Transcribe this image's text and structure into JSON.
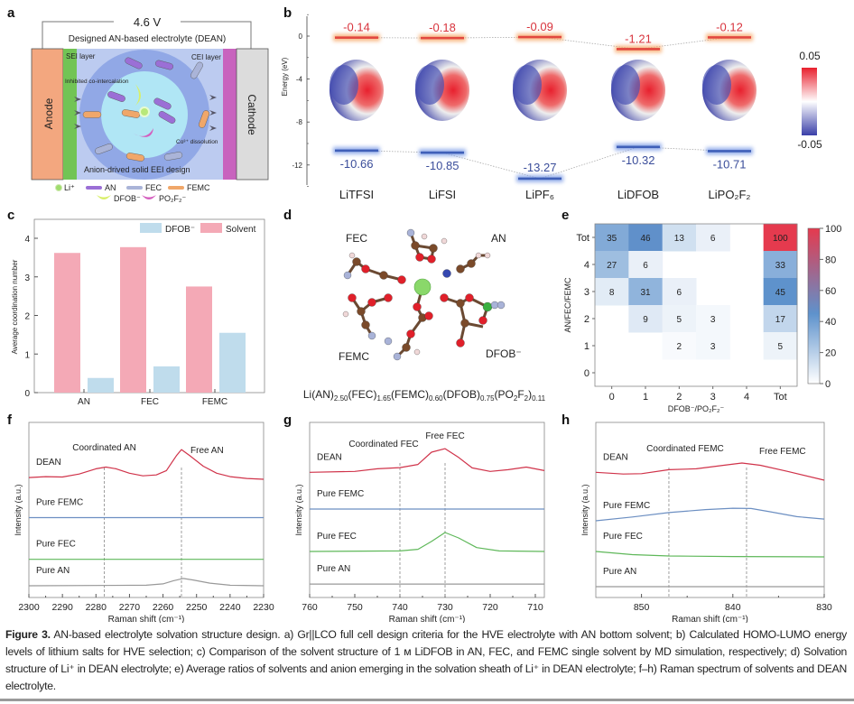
{
  "panel_labels": {
    "a": "a",
    "b": "b",
    "c": "c",
    "d": "d",
    "e": "e",
    "f": "f",
    "g": "g",
    "h": "h"
  },
  "panel_a": {
    "voltage": "4.6 V",
    "electrolyte_title": "Designed AN-based electrolyte (DEAN)",
    "anode": "Anode",
    "cathode": "Cathode",
    "sei": "SEI layer",
    "cei": "CEI layer",
    "inhibited": "Inhibited co-intercalation",
    "dissolution": "Co³⁺ dissolution",
    "eei": "Anion-drived solid EEI design",
    "legend": [
      {
        "label": "Li⁺",
        "color": "#9fdc6e",
        "shape": "circle"
      },
      {
        "label": "AN",
        "color": "#9b6fd6",
        "shape": "capsule"
      },
      {
        "label": "FEC",
        "color": "#aab4d8",
        "shape": "capsule"
      },
      {
        "label": "FEMC",
        "color": "#f0a76a",
        "shape": "capsule"
      },
      {
        "label": "DFOB⁻",
        "color": "#d9ef6a",
        "shape": "crescent"
      },
      {
        "label": "PO₂F₂⁻",
        "color": "#d45fbf",
        "shape": "crescent"
      }
    ],
    "colors": {
      "anode": "#f3a77f",
      "sei": "#72c455",
      "cei": "#c863be",
      "cathode": "#dcdcdc",
      "electrolyte": "#bccbf0",
      "shell": "#8aa2e4",
      "core": "#b0e6f5"
    }
  },
  "chart_data": [
    {
      "panel": "b",
      "type": "bar",
      "ylabel": "Energy (eV)",
      "yticks": [
        0,
        -4,
        -8,
        -12
      ],
      "ylim": [
        -14,
        2
      ],
      "categories": [
        "LiTFSI",
        "LiFSI",
        "LiPF₆",
        "LiDFOB",
        "LiPO₂F₂"
      ],
      "series": [
        {
          "name": "LUMO",
          "values": [
            -0.14,
            -0.18,
            -0.09,
            -1.21,
            -0.12
          ],
          "color": "#e2473f"
        },
        {
          "name": "HOMO",
          "values": [
            -10.66,
            -10.85,
            -13.27,
            -10.32,
            -10.71
          ],
          "color": "#3f5fb8"
        }
      ],
      "colorbar": {
        "max_label": "0.05",
        "min_label": "-0.05",
        "colors": [
          "#e8202e",
          "#ffffff",
          "#3a3fa8"
        ]
      }
    },
    {
      "panel": "c",
      "type": "bar",
      "ylabel": "Average coordination number",
      "yticks": [
        0,
        1,
        2,
        3,
        4
      ],
      "ylim": [
        0,
        4.5
      ],
      "categories": [
        "AN",
        "FEC",
        "FEMC"
      ],
      "series": [
        {
          "name": "Solvent",
          "values": [
            3.62,
            3.77,
            2.75
          ],
          "color": "#f4a9b6"
        },
        {
          "name": "DFOB⁻",
          "values": [
            0.38,
            0.68,
            1.55
          ],
          "color": "#bfdcec"
        }
      ],
      "legend_order": [
        "DFOB⁻",
        "Solvent"
      ],
      "legend_position": "top-right"
    },
    {
      "panel": "e",
      "type": "heatmap",
      "xlabel": "DFOB⁻/PO₂F₂⁻",
      "ylabel": "AN/FEC/FEMC",
      "x_categories": [
        "0",
        "1",
        "2",
        "3",
        "4",
        "Tot"
      ],
      "y_categories": [
        "Tot",
        "4",
        "3",
        "2",
        "1",
        "0"
      ],
      "values": [
        [
          35,
          46,
          13,
          6,
          null,
          100
        ],
        [
          27,
          6,
          null,
          null,
          null,
          33
        ],
        [
          8,
          31,
          6,
          null,
          null,
          45
        ],
        [
          null,
          9,
          5,
          3,
          null,
          17
        ],
        [
          null,
          null,
          2,
          3,
          null,
          5
        ],
        [
          null,
          null,
          null,
          null,
          null,
          null
        ]
      ],
      "colorbar_ticks": [
        0,
        20,
        40,
        60,
        80,
        100
      ],
      "colorscale": [
        "#ffffff",
        "#5e92cc",
        "#e53a4e"
      ]
    },
    {
      "panel": "f",
      "type": "line",
      "xlabel": "Raman shift (cm⁻¹)",
      "ylabel": "Intensity (a.u.)",
      "xlim": [
        2300,
        2230
      ],
      "xticks": [
        2300,
        2290,
        2280,
        2270,
        2260,
        2250,
        2240,
        2230
      ],
      "ylim": [
        0,
        10
      ],
      "markers": [
        2277.5,
        2254.5
      ],
      "annotations": [
        "Coordinated AN",
        "Free AN"
      ],
      "series": [
        {
          "name": "DEAN",
          "color": "#d0334a",
          "x": [
            2300,
            2295,
            2290,
            2285,
            2280,
            2277,
            2274,
            2270,
            2266,
            2262,
            2259,
            2256,
            2254.5,
            2252,
            2248,
            2244,
            2240,
            2235,
            2230
          ],
          "y": [
            6.85,
            6.9,
            6.88,
            7.05,
            7.35,
            7.45,
            7.35,
            7.1,
            6.95,
            7.0,
            7.25,
            8.1,
            8.45,
            8.1,
            7.5,
            7.1,
            6.9,
            6.8,
            6.75
          ]
        },
        {
          "name": "Pure FEMC",
          "color": "#6c8fc2",
          "x": [
            2300,
            2230
          ],
          "y": [
            4.56,
            4.56
          ]
        },
        {
          "name": "Pure FEC",
          "color": "#5fb85a",
          "x": [
            2300,
            2230
          ],
          "y": [
            2.18,
            2.18
          ]
        },
        {
          "name": "Pure AN",
          "color": "#999999",
          "x": [
            2300,
            2265,
            2260,
            2257,
            2254,
            2251,
            2246,
            2240,
            2230
          ],
          "y": [
            0.67,
            0.7,
            0.78,
            0.95,
            1.09,
            1.0,
            0.82,
            0.7,
            0.67
          ]
        }
      ]
    },
    {
      "panel": "g",
      "type": "line",
      "xlabel": "Raman shift (cm⁻¹)",
      "ylabel": "Intensity (a.u.)",
      "xlim": [
        760,
        708
      ],
      "xticks": [
        760,
        750,
        740,
        730,
        720,
        710
      ],
      "ylim": [
        0,
        10
      ],
      "markers": [
        740,
        730
      ],
      "annotations": [
        "Coordinated FEC",
        "Free FEC"
      ],
      "series": [
        {
          "name": "DEAN",
          "color": "#d0334a",
          "x": [
            760,
            750,
            745,
            740,
            736,
            733,
            730,
            727,
            724,
            720,
            716,
            712,
            708
          ],
          "y": [
            7.15,
            7.2,
            7.35,
            7.42,
            7.6,
            8.3,
            8.5,
            8.0,
            7.4,
            7.2,
            7.3,
            7.45,
            7.25
          ]
        },
        {
          "name": "Pure FEMC",
          "color": "#6c8fc2",
          "x": [
            760,
            708
          ],
          "y": [
            5.05,
            5.05
          ]
        },
        {
          "name": "Pure FEC",
          "color": "#5fb85a",
          "x": [
            760,
            740,
            736,
            733,
            730,
            727,
            723,
            718,
            708
          ],
          "y": [
            2.63,
            2.66,
            2.75,
            3.2,
            3.71,
            3.4,
            2.85,
            2.66,
            2.63
          ]
        },
        {
          "name": "Pure AN",
          "color": "#999999",
          "x": [
            760,
            708
          ],
          "y": [
            0.77,
            0.77
          ]
        }
      ]
    },
    {
      "panel": "h",
      "type": "line",
      "xlabel": "Raman shift (cm⁻¹)",
      "ylabel": "Intensity (a.u.)",
      "xlim": [
        855,
        830
      ],
      "xticks": [
        850,
        840,
        830
      ],
      "ylim": [
        0,
        10
      ],
      "markers": [
        847,
        838.5
      ],
      "annotations": [
        "Coordinated FEMC",
        "Free FEMC"
      ],
      "series": [
        {
          "name": "DEAN",
          "color": "#d0334a",
          "x": [
            855,
            852,
            850,
            847,
            844,
            841,
            839,
            837,
            834,
            830
          ],
          "y": [
            7.15,
            7.05,
            7.07,
            7.3,
            7.35,
            7.55,
            7.68,
            7.55,
            7.2,
            6.7
          ]
        },
        {
          "name": "Pure FEMC",
          "color": "#6c8fc2",
          "x": [
            855,
            851,
            847,
            843,
            840,
            838,
            836,
            833,
            830
          ],
          "y": [
            4.38,
            4.6,
            4.85,
            5.02,
            5.1,
            5.08,
            4.9,
            4.62,
            4.48
          ]
        },
        {
          "name": "Pure FEC",
          "color": "#5fb85a",
          "x": [
            855,
            851,
            847,
            840,
            830
          ],
          "y": [
            2.63,
            2.45,
            2.37,
            2.34,
            2.32
          ]
        },
        {
          "name": "Pure AN",
          "color": "#999999",
          "x": [
            855,
            830
          ],
          "y": [
            0.62,
            0.62
          ]
        }
      ]
    }
  ],
  "panel_d": {
    "labels": {
      "fec": "FEC",
      "an": "AN",
      "femc": "FEMC",
      "dfob": "DFOB⁻"
    },
    "formula": [
      [
        "Li(AN)",
        "2.50"
      ],
      [
        "(FEC)",
        "1.65"
      ],
      [
        "(FEMC)",
        "0.60"
      ],
      [
        "(DFOB)",
        "0.75"
      ],
      [
        "(PO",
        "2"
      ],
      [
        "F",
        "2"
      ],
      [
        ")",
        "0.11"
      ]
    ]
  },
  "caption": {
    "label": "Figure 3.",
    "text": "AN-based electrolyte solvation structure design. a) Gr||LCO full cell design criteria for the HVE electrolyte with AN bottom solvent; b) Calculated HOMO-LUMO energy levels of lithium salts for HVE selection; c) Comparison of the solvent structure of 1 ᴍ LiDFOB in AN, FEC, and FEMC single solvent by MD simulation, respectively; d) Solvation structure of Li⁺ in DEAN electrolyte; e) Average ratios of solvents and anion emerging in the solvation sheath of Li⁺ in DEAN electrolyte; f–h) Raman spectrum of solvents and DEAN electrolyte."
  }
}
